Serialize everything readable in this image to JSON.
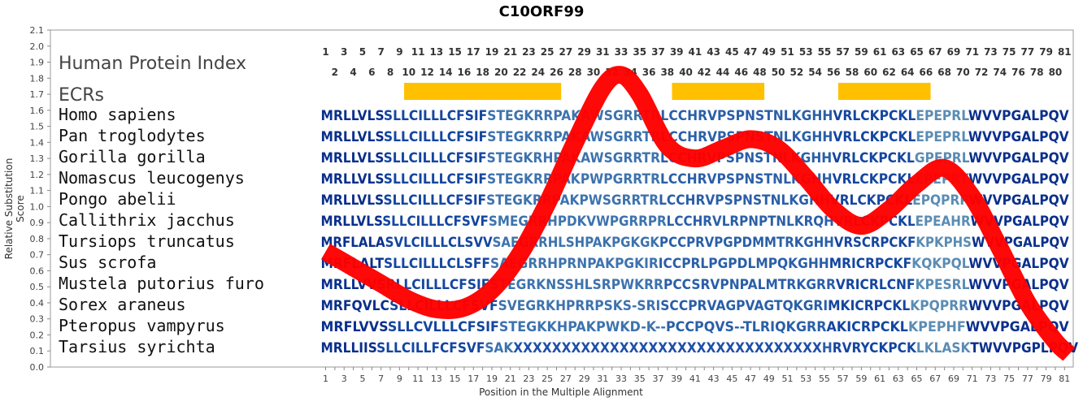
{
  "chart_data": {
    "type": "line",
    "title": "C10ORF99",
    "ylabel": "Relative Substitution Score",
    "xlabel": "Position in the Multiple Alignment",
    "ylim": [
      0.0,
      2.1
    ],
    "y_ticks": [
      "0.0",
      "0.1",
      "0.2",
      "0.3",
      "0.4",
      "0.5",
      "0.6",
      "0.7",
      "0.8",
      "0.9",
      "1.0",
      "1.1",
      "1.2",
      "1.3",
      "1.4",
      "1.5",
      "1.6",
      "1.7",
      "1.8",
      "1.9",
      "2.0",
      "2.1"
    ],
    "xlim": [
      1,
      81
    ],
    "x_ticks": [
      1,
      3,
      5,
      7,
      9,
      11,
      13,
      15,
      17,
      19,
      21,
      23,
      25,
      27,
      29,
      31,
      33,
      35,
      37,
      39,
      41,
      43,
      45,
      47,
      49,
      51,
      53,
      55,
      57,
      59,
      61,
      63,
      65,
      67,
      69,
      71,
      73,
      75,
      77,
      79,
      81
    ],
    "index_label": "Human Protein Index",
    "index_top": [
      1,
      3,
      5,
      7,
      9,
      11,
      13,
      15,
      17,
      19,
      21,
      23,
      25,
      27,
      29,
      31,
      33,
      35,
      37,
      39,
      41,
      43,
      45,
      47,
      49,
      51,
      53,
      55,
      57,
      59,
      61,
      63,
      65,
      67,
      69,
      71,
      73,
      75,
      77,
      79,
      81
    ],
    "index_bottom": [
      2,
      4,
      6,
      8,
      10,
      12,
      14,
      16,
      18,
      20,
      22,
      24,
      26,
      28,
      30,
      32,
      34,
      36,
      38,
      40,
      42,
      44,
      46,
      48,
      50,
      52,
      54,
      56,
      58,
      60,
      62,
      64,
      66,
      68,
      70,
      72,
      74,
      76,
      78,
      80
    ],
    "ecr_label": "ECRs",
    "ecrs": [
      [
        10,
        26
      ],
      [
        39,
        48
      ],
      [
        57,
        66
      ]
    ],
    "series_color": "#ff0000",
    "ecr_color": "#ffc000",
    "curve": {
      "x": [
        1,
        4,
        7,
        10,
        13,
        16,
        19,
        22,
        25,
        28,
        31,
        33,
        35,
        38,
        41,
        44,
        47,
        50,
        53,
        56,
        59,
        62,
        65,
        68,
        71,
        74,
        77,
        80,
        81.5
      ],
      "y": [
        0.72,
        0.62,
        0.52,
        0.42,
        0.36,
        0.37,
        0.48,
        0.7,
        1.02,
        1.4,
        1.74,
        1.82,
        1.7,
        1.38,
        1.3,
        1.36,
        1.42,
        1.36,
        1.18,
        0.98,
        0.88,
        0.98,
        1.14,
        1.24,
        1.06,
        0.74,
        0.4,
        0.16,
        0.08
      ]
    },
    "sequences": [
      {
        "species": "Homo sapiens",
        "seq": "MRLLVLSSLLCILLLCFSIFSTEGKRRPAKAWSGRRTRLCCHRVPSPNSTNLKGHHVRLCKPCKLEPEPRLWVVPGALPQV"
      },
      {
        "species": "Pan troglodytes",
        "seq": "MRLLVLSSLLCILLLCFSIFSTEGKRRPAKAWSGRRTRLCCHRVPSPNSTNLKGHHVRLCKPCKLEPEPRLWVVPGALPQV"
      },
      {
        "species": "Gorilla gorilla",
        "seq": "MRLLVLSSLLCILLLCFSIFSTEGKRHPAKAWSGRRTRLCCHRVPSPNSTNLKGHHVRLCKPCKLGPEPRLWVVPGALPQV"
      },
      {
        "species": "Nomascus leucogenys",
        "seq": "MRLLVLSSLLCILLLCFSIFSTEGKRRPAKPWPGRRTRLCCHRVPSPNSTNLKGHHVRLCKPCKLEPEPRTWVVPGALPQV"
      },
      {
        "species": "Pongo abelii",
        "seq": "MRLLVLSSLLCILLLCFSIFSTEGKRRPAKPWSGRRTRLCCHRVPSPNSTNLKGHHVRLCKPCKLEPQPRPWVVPGALPQV"
      },
      {
        "species": "Callithrix jacchus",
        "seq": "MRLLVLSSLLCILLLCFSVFSMEGRRHPDKVWPGRRPRLCCHRVLRPNPTNLKRQHVRLCKPCKLEPEAHRWVVPGALPQV"
      },
      {
        "species": "Tursiops truncatus",
        "seq": "MRFLALASVLCILLLCLSVVSAEGRRHLSHPAKPGKGKPCCPRVPGPDMMTRKGHHVRSCRPCKFKPKPHSWVVPGALPQV"
      },
      {
        "species": "Sus scrofa",
        "seq": "MRFLALTSLLCILLLCLSFFSAEGRRHPRNPAKPGKIRICCPRLPGPDLMPQKGHHMRICRPCKFKQKPQLWVVPGALPQV"
      },
      {
        "species": "Mustela putorius furo",
        "seq": "MRLLVVSRLLCILLLCFSIFSTEGRKNSSHLSRPWKRRPCCSRVPNPALMTRKGRRVRICRLCNFKPESRLWVVPGALPQV"
      },
      {
        "species": "Sorex araneus",
        "seq": "MRFQVLCSLLCILLLCFSVFSVEGRKHPRRPSKS-SRISCCPRVAGPVAGTQKGRIMKICRPCKLKPQPRRWVVPGALPQV"
      },
      {
        "species": "Pteropus vampyrus",
        "seq": "MRFLVVSSLLCVLLLCFSIFSTEGKKHPAKPWKD-K--PCCPQVS--TLRIQKGRRAKICRPCKLKPEPHFWVVPGALPQV"
      },
      {
        "species": "Tarsius syrichta",
        "seq": "MRLLIISSLLCILLFCFSVFSAKXXXXXXXXXXXXXXXXXXXXXXXXXXXXXXXXHRVRYCKPCKLKLASKTWVVPGPLPQV"
      }
    ]
  }
}
